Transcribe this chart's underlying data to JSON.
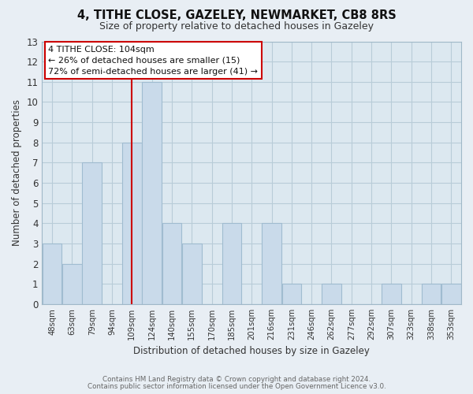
{
  "title": "4, TITHE CLOSE, GAZELEY, NEWMARKET, CB8 8RS",
  "subtitle": "Size of property relative to detached houses in Gazeley",
  "xlabel": "Distribution of detached houses by size in Gazeley",
  "ylabel": "Number of detached properties",
  "categories": [
    "48sqm",
    "63sqm",
    "79sqm",
    "94sqm",
    "109sqm",
    "124sqm",
    "140sqm",
    "155sqm",
    "170sqm",
    "185sqm",
    "201sqm",
    "216sqm",
    "231sqm",
    "246sqm",
    "262sqm",
    "277sqm",
    "292sqm",
    "307sqm",
    "323sqm",
    "338sqm",
    "353sqm"
  ],
  "values": [
    3,
    2,
    7,
    0,
    8,
    11,
    4,
    3,
    0,
    4,
    0,
    4,
    1,
    0,
    1,
    0,
    0,
    1,
    0,
    1,
    1
  ],
  "bar_color": "#c9daea",
  "bar_edge_color": "#a0bcd0",
  "highlight_bar_index": 4,
  "highlight_line_color": "#cc0000",
  "ylim": [
    0,
    13
  ],
  "yticks": [
    0,
    1,
    2,
    3,
    4,
    5,
    6,
    7,
    8,
    9,
    10,
    11,
    12,
    13
  ],
  "annotation_box_text": "4 TITHE CLOSE: 104sqm\n← 26% of detached houses are smaller (15)\n72% of semi-detached houses are larger (41) →",
  "footer_line1": "Contains HM Land Registry data © Crown copyright and database right 2024.",
  "footer_line2": "Contains public sector information licensed under the Open Government Licence v3.0.",
  "bg_color": "#e8eef4",
  "plot_bg_color": "#dce8f0",
  "grid_color": "#b8ccd8",
  "spine_color": "#a0b8c8"
}
